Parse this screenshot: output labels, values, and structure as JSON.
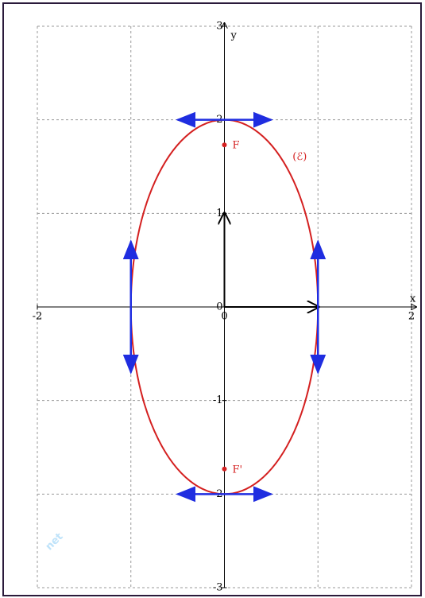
{
  "axes": {
    "x_label": "x",
    "y_label": "y",
    "xlim": [
      -2,
      2
    ],
    "ylim": [
      -3,
      3
    ],
    "xticks": [
      -2,
      0,
      2
    ],
    "yticks": [
      -3,
      -2,
      -1,
      0,
      1,
      2,
      3
    ],
    "grid": [
      -2,
      -1,
      0,
      1,
      2
    ]
  },
  "ellipse": {
    "label": "(ℰ)",
    "a": 1,
    "b": 2,
    "color": "#d42020"
  },
  "foci": [
    {
      "label": "F",
      "x": 0,
      "y": 1.732
    },
    {
      "label": "F'",
      "x": 0,
      "y": -1.732
    }
  ],
  "tangents": [
    [
      -0.5,
      2,
      0.5,
      2
    ],
    [
      -0.5,
      -2,
      0.5,
      -2
    ],
    [
      -1,
      -0.7,
      -1,
      0.7
    ],
    [
      1,
      -0.7,
      1,
      0.7
    ]
  ],
  "basis": [
    [
      0,
      0,
      1,
      0
    ],
    [
      0,
      0,
      0,
      1
    ]
  ],
  "watermark": "net"
}
